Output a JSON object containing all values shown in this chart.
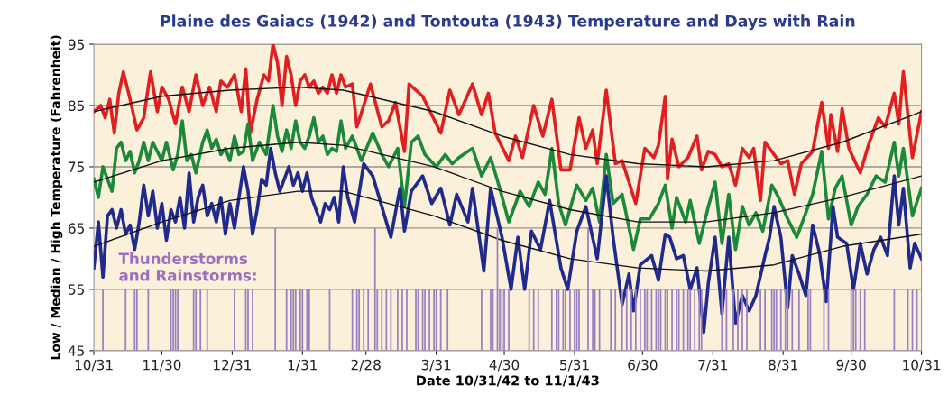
{
  "chart_data": {
    "type": "line",
    "title": "Plaine des Gaiacs (1942) and Tontouta (1943) Temperature and Days with Rain",
    "xlabel": "Date 10/31/42 to 11/1/43",
    "ylabel": "Low / Median / High Temperature (Fahrenheit)",
    "annotations": [
      "Thunderstorms\nand Rainstorms:"
    ],
    "xlim": [
      "1942-10-31",
      "1943-10-31"
    ],
    "xticks": [
      {
        "value": "1942-10-31",
        "label": "10/31"
      },
      {
        "value": "1942-11-30",
        "label": "11/30"
      },
      {
        "value": "1942-12-31",
        "label": "12/31"
      },
      {
        "value": "1943-01-31",
        "label": "1/31"
      },
      {
        "value": "1943-02-28",
        "label": "2/28"
      },
      {
        "value": "1943-03-31",
        "label": "3/31"
      },
      {
        "value": "1943-04-30",
        "label": "4/30"
      },
      {
        "value": "1943-05-31",
        "label": "5/31"
      },
      {
        "value": "1943-06-30",
        "label": "6/30"
      },
      {
        "value": "1943-07-31",
        "label": "7/31"
      },
      {
        "value": "1943-08-31",
        "label": "8/31"
      },
      {
        "value": "1943-09-30",
        "label": "9/30"
      },
      {
        "value": "1943-10-31",
        "label": "10/31"
      }
    ],
    "ylim": [
      45,
      95
    ],
    "yticks": [
      45,
      55,
      65,
      75,
      85,
      95
    ],
    "grid": "y",
    "line_style": "solid",
    "series": [
      {
        "type": "bar",
        "color": "#9b80c0",
        "x": [
          "1942-11-04",
          "1942-11-14",
          "1942-11-18",
          "1942-11-19",
          "1942-11-24",
          "1942-12-04",
          "1942-12-05",
          "1942-12-06",
          "1942-12-07",
          "1942-12-14",
          "1942-12-15",
          "1942-12-17",
          "1942-12-20",
          "1943-01-01",
          "1943-01-06",
          "1943-01-07",
          "1943-01-09",
          "1943-01-19",
          "1943-01-24",
          "1943-01-26",
          "1943-01-27",
          "1943-01-28",
          "1943-01-30",
          "1943-01-31",
          "1943-02-02",
          "1943-02-03",
          "1943-02-12",
          "1943-02-22",
          "1943-02-24",
          "1943-02-25",
          "1943-02-27",
          "1943-03-01",
          "1943-03-04",
          "1943-03-05",
          "1943-03-07",
          "1943-03-09",
          "1943-03-11",
          "1943-03-14",
          "1943-03-16",
          "1943-03-18",
          "1943-03-22",
          "1943-03-23",
          "1943-03-25",
          "1943-03-26",
          "1943-03-28",
          "1943-03-30",
          "1943-03-31",
          "1943-04-02",
          "1943-04-05",
          "1943-04-20",
          "1943-04-24",
          "1943-04-25",
          "1943-04-27",
          "1943-04-28",
          "1943-04-29",
          "1943-04-30",
          "1943-05-02",
          "1943-05-11",
          "1943-05-13",
          "1943-05-15",
          "1943-05-21",
          "1943-05-23",
          "1943-05-24",
          "1943-05-26",
          "1943-05-27",
          "1943-05-29",
          "1943-05-31",
          "1943-06-01",
          "1943-06-02",
          "1943-06-06",
          "1943-06-08",
          "1943-06-09",
          "1943-06-11",
          "1943-06-16",
          "1943-06-18",
          "1943-06-21",
          "1943-06-23",
          "1943-06-25",
          "1943-06-27",
          "1943-06-29",
          "1943-07-01",
          "1943-07-02",
          "1943-07-04",
          "1943-07-06",
          "1943-07-07",
          "1943-07-08",
          "1943-07-10",
          "1943-07-11",
          "1943-07-13",
          "1943-07-15",
          "1943-07-16",
          "1943-07-18",
          "1943-07-20",
          "1943-07-21",
          "1943-07-23",
          "1943-07-25",
          "1943-07-26",
          "1943-08-04",
          "1943-08-06",
          "1943-08-09",
          "1943-08-11",
          "1943-08-13",
          "1943-08-15",
          "1943-08-21",
          "1943-08-23",
          "1943-08-26",
          "1943-08-27",
          "1943-08-28",
          "1943-08-30",
          "1943-09-01",
          "1943-09-02",
          "1943-09-04",
          "1943-09-07",
          "1943-09-11",
          "1943-09-12",
          "1943-09-18",
          "1943-09-20",
          "1943-09-30",
          "1943-10-01",
          "1943-10-02",
          "1943-10-04",
          "1943-10-06",
          "1943-10-19",
          "1943-10-25",
          "1943-10-27",
          "1943-10-29"
        ],
        "base": [
          45,
          45,
          45,
          45,
          45,
          45,
          45,
          45,
          45,
          45,
          45,
          45,
          45,
          45,
          45,
          45,
          45,
          45,
          45,
          45,
          45,
          45,
          45,
          45,
          45,
          45,
          45,
          45,
          45,
          45,
          45,
          45,
          45,
          45,
          45,
          45,
          45,
          45,
          45,
          45,
          45,
          45,
          45,
          45,
          45,
          45,
          45,
          45,
          45,
          45,
          45,
          45,
          45,
          45,
          45,
          45,
          45,
          45,
          45,
          45,
          45,
          45,
          45,
          45,
          45,
          45,
          45,
          45,
          45,
          45,
          45,
          45,
          45,
          45,
          45,
          45,
          45,
          45,
          45,
          45,
          45,
          45,
          45,
          45,
          45,
          45,
          45,
          45,
          45,
          45,
          45,
          45,
          45,
          45,
          45,
          45,
          45,
          45,
          45,
          45,
          45,
          45,
          45,
          45,
          45,
          45,
          45,
          45,
          45,
          45,
          45,
          45,
          45,
          45,
          45,
          45,
          45,
          45,
          45,
          45,
          45,
          45,
          45,
          45,
          45,
          45
        ],
        "values": [
          10,
          10,
          10,
          10,
          10,
          10,
          10,
          10,
          10,
          10,
          10,
          10,
          10,
          10,
          10,
          10,
          10,
          20,
          10,
          10,
          10,
          10,
          10,
          10,
          10,
          10,
          10,
          10,
          10,
          10,
          10,
          10,
          20,
          10,
          10,
          10,
          10,
          10,
          10,
          10,
          10,
          10,
          10,
          10,
          10,
          10,
          10,
          10,
          10,
          10,
          10,
          10,
          20,
          10,
          10,
          10,
          10,
          10,
          10,
          10,
          10,
          10,
          10,
          10,
          10,
          10,
          10,
          10,
          10,
          20,
          10,
          10,
          10,
          10,
          10,
          10,
          10,
          10,
          10,
          10,
          10,
          10,
          10,
          10,
          10,
          10,
          10,
          10,
          10,
          10,
          10,
          10,
          10,
          10,
          10,
          10,
          10,
          10,
          10,
          10,
          10,
          10,
          10,
          10,
          10,
          10,
          10,
          10,
          10,
          10,
          10,
          10,
          10,
          10,
          10,
          10,
          10,
          10,
          10,
          10,
          10,
          10,
          10,
          10,
          10,
          10
        ]
      },
      {
        "color": "#e02020",
        "x": [
          "1942-10-31",
          "1942-11-03",
          "1942-11-05",
          "1942-11-07",
          "1942-11-09",
          "1942-11-11",
          "1942-11-13",
          "1942-11-16",
          "1942-11-19",
          "1942-11-22",
          "1942-11-25",
          "1942-11-28",
          "1942-11-30",
          "1942-12-03",
          "1942-12-06",
          "1942-12-09",
          "1942-12-12",
          "1942-12-15",
          "1942-12-18",
          "1942-12-21",
          "1942-12-24",
          "1942-12-26",
          "1942-12-29",
          "1943-01-01",
          "1943-01-04",
          "1943-01-06",
          "1943-01-08",
          "1943-01-11",
          "1943-01-14",
          "1943-01-16",
          "1943-01-18",
          "1943-01-20",
          "1943-01-22",
          "1943-01-24",
          "1943-01-26",
          "1943-01-28",
          "1943-01-30",
          "1943-02-01",
          "1943-02-03",
          "1943-02-05",
          "1943-02-07",
          "1943-02-09",
          "1943-02-11",
          "1943-02-13",
          "1943-02-15",
          "1943-02-17",
          "1943-02-19",
          "1943-02-22",
          "1943-02-24",
          "1943-03-02",
          "1943-03-07",
          "1943-03-10",
          "1943-03-13",
          "1943-03-17",
          "1943-03-19",
          "1943-03-25",
          "1943-04-02",
          "1943-04-06",
          "1943-04-10",
          "1943-04-16",
          "1943-04-20",
          "1943-04-23",
          "1943-04-26",
          "1943-05-02",
          "1943-05-05",
          "1943-05-08",
          "1943-05-13",
          "1943-05-17",
          "1943-05-21",
          "1943-05-25",
          "1943-05-29",
          "1943-06-02",
          "1943-06-05",
          "1943-06-08",
          "1943-06-10",
          "1943-06-14",
          "1943-06-18",
          "1943-06-21",
          "1943-06-27",
          "1943-07-01",
          "1943-07-05",
          "1943-07-07",
          "1943-07-10",
          "1943-07-11",
          "1943-07-13",
          "1943-07-16",
          "1943-07-20",
          "1943-07-24",
          "1943-07-26",
          "1943-07-29",
          "1943-08-01",
          "1943-08-04",
          "1943-08-07",
          "1943-08-10",
          "1943-08-13",
          "1943-08-16",
          "1943-08-18",
          "1943-08-21",
          "1943-08-23",
          "1943-08-27",
          "1943-08-30",
          "1943-09-02",
          "1943-09-05",
          "1943-09-08",
          "1943-09-13",
          "1943-09-17",
          "1943-09-20",
          "1943-09-21",
          "1943-09-24",
          "1943-09-26",
          "1943-09-29",
          "1943-10-04",
          "1943-10-08",
          "1943-10-12",
          "1943-10-15",
          "1943-10-19",
          "1943-10-21",
          "1943-10-23",
          "1943-10-27",
          "1943-10-31"
        ],
        "values": [
          84,
          85,
          83,
          86,
          80.5,
          87,
          90.5,
          86,
          81,
          83,
          90.5,
          84,
          88,
          86,
          82,
          88,
          84,
          90,
          85,
          88,
          84,
          89,
          88,
          90,
          84,
          91,
          80.5,
          86,
          90,
          89,
          95,
          92,
          85,
          93,
          90,
          85,
          89,
          90,
          88,
          89,
          87,
          88,
          87,
          90,
          87,
          90,
          88,
          88.5,
          81.5,
          88.5,
          81.5,
          82.5,
          85.5,
          77.5,
          88.5,
          86.5,
          80.5,
          87.5,
          83.5,
          88.5,
          83.5,
          87,
          80.5,
          76,
          80,
          76.5,
          85,
          80,
          86,
          74.5,
          74.5,
          83,
          78,
          81,
          75.5,
          87.5,
          75.5,
          76,
          69,
          78,
          76.5,
          78.5,
          86.5,
          73,
          79.5,
          75,
          76.5,
          80,
          74.5,
          77.5,
          77,
          75,
          75.5,
          72,
          78,
          76.5,
          78,
          69.5,
          79,
          77,
          75.5,
          76,
          70.5,
          75.5,
          77.5,
          85.5,
          78,
          83.5,
          77.5,
          84.5,
          78,
          74,
          79,
          83,
          81.5,
          87,
          82,
          90.5,
          76.5,
          84
        ]
      },
      {
        "color": "#1a8a3a",
        "x": [
          "1942-10-31",
          "1942-11-02",
          "1942-11-04",
          "1942-11-06",
          "1942-11-08",
          "1942-11-10",
          "1942-11-12",
          "1942-11-14",
          "1942-11-16",
          "1942-11-18",
          "1942-11-20",
          "1942-11-22",
          "1942-11-24",
          "1942-11-26",
          "1942-11-28",
          "1942-11-30",
          "1942-12-02",
          "1942-12-05",
          "1942-12-07",
          "1942-12-09",
          "1942-12-11",
          "1942-12-13",
          "1942-12-15",
          "1942-12-18",
          "1942-12-20",
          "1942-12-22",
          "1942-12-24",
          "1942-12-26",
          "1942-12-28",
          "1942-12-30",
          "1943-01-01",
          "1943-01-03",
          "1943-01-05",
          "1943-01-07",
          "1943-01-09",
          "1943-01-12",
          "1943-01-15",
          "1943-01-18",
          "1943-01-20",
          "1943-01-22",
          "1943-01-24",
          "1943-01-26",
          "1943-01-28",
          "1943-01-30",
          "1943-02-01",
          "1943-02-03",
          "1943-02-05",
          "1943-02-07",
          "1943-02-09",
          "1943-02-11",
          "1943-02-13",
          "1943-02-15",
          "1943-02-17",
          "1943-02-19",
          "1943-02-22",
          "1943-02-26",
          "1943-03-03",
          "1943-03-07",
          "1943-03-10",
          "1943-03-14",
          "1943-03-17",
          "1943-03-20",
          "1943-03-23",
          "1943-03-26",
          "1943-03-31",
          "1943-04-04",
          "1943-04-07",
          "1943-04-10",
          "1943-04-16",
          "1943-04-20",
          "1943-04-24",
          "1943-04-28",
          "1943-05-02",
          "1943-05-07",
          "1943-05-11",
          "1943-05-15",
          "1943-05-18",
          "1943-05-21",
          "1943-05-24",
          "1943-05-27",
          "1943-06-01",
          "1943-06-05",
          "1943-06-08",
          "1943-06-11",
          "1943-06-14",
          "1943-06-17",
          "1943-06-21",
          "1943-06-26",
          "1943-06-29",
          "1943-07-03",
          "1943-07-07",
          "1943-07-10",
          "1943-07-13",
          "1943-07-15",
          "1943-07-19",
          "1943-07-21",
          "1943-07-25",
          "1943-07-29",
          "1943-08-01",
          "1943-08-04",
          "1943-08-07",
          "1943-08-10",
          "1943-08-13",
          "1943-08-16",
          "1943-08-19",
          "1943-08-22",
          "1943-08-26",
          "1943-08-29",
          "1943-09-02",
          "1943-09-06",
          "1943-09-10",
          "1943-09-13",
          "1943-09-17",
          "1943-09-20",
          "1943-09-23",
          "1943-09-26",
          "1943-09-30",
          "1943-10-03",
          "1943-10-07",
          "1943-10-11",
          "1943-10-15",
          "1943-10-19",
          "1943-10-21",
          "1943-10-23",
          "1943-10-27",
          "1943-10-31"
        ],
        "values": [
          73,
          70,
          75,
          73,
          71,
          78,
          79,
          76,
          77.5,
          74,
          76,
          79,
          76,
          79,
          77.5,
          76,
          79,
          74.5,
          77,
          82.5,
          76,
          77,
          74,
          79,
          81,
          78,
          79.5,
          77,
          78,
          76,
          80,
          77,
          77.5,
          82,
          76,
          79,
          77,
          85,
          80,
          77.5,
          81,
          78,
          82.5,
          79,
          78,
          80,
          83,
          79,
          80,
          77,
          78,
          77.5,
          82.5,
          78,
          80,
          76,
          80.5,
          77,
          75,
          78,
          68.5,
          79,
          80,
          77,
          75,
          77,
          75.5,
          76.5,
          78,
          73.5,
          76.5,
          71.5,
          66,
          71,
          68.5,
          72.5,
          70.5,
          78,
          69,
          65.5,
          72,
          69.5,
          71.5,
          66,
          77,
          69,
          70.5,
          61.5,
          66.5,
          66.5,
          69,
          72,
          65,
          70,
          66,
          69.5,
          62.5,
          68.5,
          72.5,
          62.5,
          70.5,
          61.5,
          68.5,
          65.5,
          67.5,
          64.5,
          72,
          70,
          66.5,
          63.5,
          67.5,
          70.5,
          77.5,
          66.5,
          71.5,
          73.5,
          65.5,
          68.5,
          70.5,
          73.5,
          72.5,
          79,
          73.5,
          78,
          67,
          71.5
        ]
      },
      {
        "color": "#1f2a8c",
        "x": [
          "1942-10-31",
          "1942-11-02",
          "1942-11-04",
          "1942-11-06",
          "1942-11-08",
          "1942-11-10",
          "1942-11-12",
          "1942-11-14",
          "1942-11-16",
          "1942-11-18",
          "1942-11-20",
          "1942-11-22",
          "1942-11-24",
          "1942-11-26",
          "1942-11-28",
          "1942-11-30",
          "1942-12-02",
          "1942-12-04",
          "1942-12-06",
          "1942-12-08",
          "1942-12-10",
          "1942-12-12",
          "1942-12-14",
          "1942-12-16",
          "1942-12-18",
          "1942-12-20",
          "1942-12-22",
          "1942-12-24",
          "1942-12-26",
          "1942-12-28",
          "1942-12-30",
          "1943-01-01",
          "1943-01-03",
          "1943-01-05",
          "1943-01-07",
          "1943-01-09",
          "1943-01-11",
          "1943-01-13",
          "1943-01-15",
          "1943-01-17",
          "1943-01-19",
          "1943-01-21",
          "1943-01-23",
          "1943-01-25",
          "1943-01-27",
          "1943-01-29",
          "1943-01-31",
          "1943-02-02",
          "1943-02-04",
          "1943-02-06",
          "1943-02-08",
          "1943-02-10",
          "1943-02-12",
          "1943-02-14",
          "1943-02-16",
          "1943-02-18",
          "1943-02-20",
          "1943-02-23",
          "1943-02-27",
          "1943-03-03",
          "1943-03-07",
          "1943-03-11",
          "1943-03-15",
          "1943-03-17",
          "1943-03-20",
          "1943-03-25",
          "1943-03-29",
          "1943-04-02",
          "1943-04-06",
          "1943-04-09",
          "1943-04-14",
          "1943-04-16",
          "1943-04-21",
          "1943-04-24",
          "1943-04-29",
          "1943-05-03",
          "1943-05-06",
          "1943-05-09",
          "1943-05-12",
          "1943-05-16",
          "1943-05-20",
          "1943-05-25",
          "1943-05-28",
          "1943-06-01",
          "1943-06-05",
          "1943-06-10",
          "1943-06-14",
          "1943-06-17",
          "1943-06-21",
          "1943-06-24",
          "1943-06-26",
          "1943-06-29",
          "1943-07-04",
          "1943-07-07",
          "1943-07-10",
          "1943-07-12",
          "1943-07-15",
          "1943-07-18",
          "1943-07-21",
          "1943-07-24",
          "1943-07-27",
          "1943-07-29",
          "1943-08-01",
          "1943-08-04",
          "1943-08-07",
          "1943-08-10",
          "1943-08-13",
          "1943-08-16",
          "1943-08-19",
          "1943-08-23",
          "1943-08-25",
          "1943-08-27",
          "1943-08-30",
          "1943-09-02",
          "1943-09-04",
          "1943-09-07",
          "1943-09-10",
          "1943-09-13",
          "1943-09-16",
          "1943-09-19",
          "1943-09-22",
          "1943-09-24",
          "1943-09-28",
          "1943-10-01",
          "1943-10-04",
          "1943-10-07",
          "1943-10-10",
          "1943-10-13",
          "1943-10-16",
          "1943-10-19",
          "1943-10-21",
          "1943-10-23",
          "1943-10-26",
          "1943-10-28",
          "1943-10-31"
        ],
        "values": [
          58.5,
          66,
          57,
          67,
          68,
          65,
          68,
          64,
          65.5,
          61.5,
          66,
          72,
          67,
          71,
          65,
          69,
          63,
          68,
          66,
          70,
          65,
          74,
          66,
          70,
          72,
          67,
          69,
          66,
          70,
          64,
          69,
          65,
          70,
          75,
          71,
          64,
          68,
          73,
          72,
          78,
          74,
          71,
          73,
          75,
          72,
          74,
          71,
          74,
          70,
          68,
          66,
          69,
          68,
          70,
          66,
          75,
          70,
          66,
          75.5,
          73.5,
          68.5,
          63.5,
          71.5,
          64.5,
          71,
          73.5,
          69,
          71.5,
          65.5,
          70.5,
          66,
          71.5,
          58,
          71.5,
          63.5,
          55,
          63.5,
          55,
          64.5,
          61.5,
          69.5,
          58.5,
          55,
          64.5,
          68.5,
          60,
          73.5,
          63.5,
          52.5,
          57.5,
          51.5,
          59,
          60.5,
          56.5,
          64,
          63.5,
          60,
          60.5,
          55,
          58.5,
          48,
          56,
          63.5,
          51,
          63.5,
          49.5,
          54,
          51.5,
          54,
          60.5,
          63.5,
          68.5,
          63.5,
          52,
          60.5,
          57.5,
          54,
          65.5,
          61,
          53,
          68.5,
          63.5,
          62.5,
          55,
          62.5,
          57.5,
          61.5,
          63.5,
          60.5,
          73.5,
          65.5,
          71.5,
          58.5,
          62.5,
          60
        ]
      },
      {
        "color": "#111111",
        "x": [
          "1942-10-31",
          "1942-11-30",
          "1942-12-30",
          "1943-01-29",
          "1943-02-18",
          "1943-03-30",
          "1943-04-29",
          "1943-05-29",
          "1943-06-28",
          "1943-07-28",
          "1943-08-27",
          "1943-09-26",
          "1943-10-31"
        ],
        "values": [
          84,
          86.5,
          87.5,
          88,
          87.5,
          84,
          80,
          77,
          75.5,
          75,
          76,
          79,
          84
        ]
      },
      {
        "color": "#111111",
        "x": [
          "1942-10-31",
          "1942-11-30",
          "1942-12-30",
          "1943-01-29",
          "1943-02-18",
          "1943-03-30",
          "1943-04-29",
          "1943-05-29",
          "1943-06-28",
          "1943-07-28",
          "1943-08-27",
          "1943-09-26",
          "1943-10-31"
        ],
        "values": [
          72.5,
          76,
          78,
          79,
          78.5,
          75,
          71,
          68,
          66,
          66,
          67.5,
          70,
          73.5
        ]
      },
      {
        "color": "#111111",
        "x": [
          "1942-10-31",
          "1942-11-30",
          "1942-12-30",
          "1943-01-29",
          "1943-02-18",
          "1943-03-30",
          "1943-04-29",
          "1943-05-29",
          "1943-06-28",
          "1943-07-28",
          "1943-08-27",
          "1943-09-26",
          "1943-10-31"
        ],
        "values": [
          62,
          66,
          69.5,
          71,
          71,
          67,
          63,
          60,
          58.5,
          58,
          59,
          62,
          64
        ]
      }
    ]
  }
}
